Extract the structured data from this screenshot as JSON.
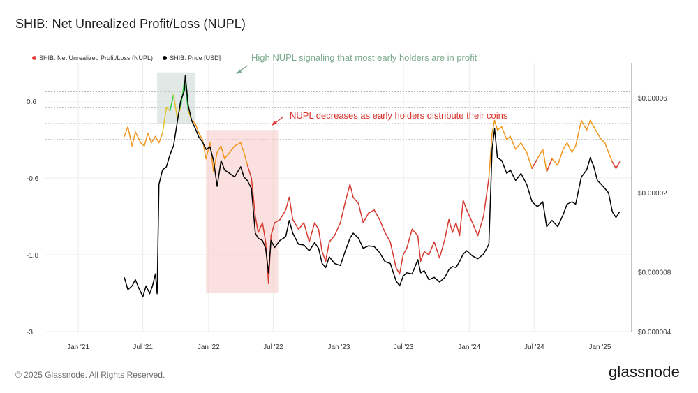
{
  "title": "SHIB: Net Unrealized Profit/Loss (NUPL)",
  "footer": "© 2025 Glassnode. All Rights Reserved.",
  "brand": "glassnode",
  "chart_data": {
    "type": "line",
    "legend_position": "top-left",
    "series": [
      {
        "name": "SHIB: Net Unrealized Profit/Loss (NUPL)",
        "axis": "left",
        "color_legend": "#e8413d",
        "gradient_by_value": {
          "low": "#d43a30",
          "mid": "#f0961e",
          "high": "#2ecc40"
        },
        "points": [
          [
            "2021-05-10",
            0.05
          ],
          [
            "2021-05-20",
            0.2
          ],
          [
            "2021-06-01",
            -0.1
          ],
          [
            "2021-06-10",
            0.12
          ],
          [
            "2021-06-25",
            -0.05
          ],
          [
            "2021-07-05",
            -0.1
          ],
          [
            "2021-07-15",
            0.1
          ],
          [
            "2021-07-25",
            -0.05
          ],
          [
            "2021-08-05",
            0.05
          ],
          [
            "2021-08-15",
            -0.05
          ],
          [
            "2021-08-25",
            0.1
          ],
          [
            "2021-09-05",
            0.5
          ],
          [
            "2021-09-15",
            0.45
          ],
          [
            "2021-09-25",
            0.7
          ],
          [
            "2021-10-05",
            0.35
          ],
          [
            "2021-10-15",
            0.5
          ],
          [
            "2021-10-25",
            0.9
          ],
          [
            "2021-10-28",
            0.85
          ],
          [
            "2021-11-05",
            0.45
          ],
          [
            "2021-11-15",
            0.3
          ],
          [
            "2021-11-25",
            0.25
          ],
          [
            "2021-12-05",
            0.1
          ],
          [
            "2021-12-15",
            0.0
          ],
          [
            "2021-12-25",
            -0.3
          ],
          [
            "2022-01-05",
            -0.05
          ],
          [
            "2022-01-15",
            -0.5
          ],
          [
            "2022-01-25",
            -0.2
          ],
          [
            "2022-02-05",
            -0.1
          ],
          [
            "2022-02-15",
            -0.3
          ],
          [
            "2022-03-01",
            -0.2
          ],
          [
            "2022-03-15",
            -0.1
          ],
          [
            "2022-04-01",
            -0.05
          ],
          [
            "2022-04-10",
            -0.2
          ],
          [
            "2022-04-20",
            -0.4
          ],
          [
            "2022-05-01",
            -0.6
          ],
          [
            "2022-05-12",
            -1.2
          ],
          [
            "2022-05-20",
            -1.45
          ],
          [
            "2022-06-01",
            -1.3
          ],
          [
            "2022-06-10",
            -1.6
          ],
          [
            "2022-06-18",
            -2.25
          ],
          [
            "2022-06-25",
            -1.5
          ],
          [
            "2022-07-05",
            -1.3
          ],
          [
            "2022-07-20",
            -1.25
          ],
          [
            "2022-08-05",
            -1.1
          ],
          [
            "2022-08-15",
            -0.9
          ],
          [
            "2022-08-25",
            -1.25
          ],
          [
            "2022-09-10",
            -1.4
          ],
          [
            "2022-09-25",
            -1.3
          ],
          [
            "2022-10-10",
            -1.6
          ],
          [
            "2022-10-25",
            -1.3
          ],
          [
            "2022-11-05",
            -1.4
          ],
          [
            "2022-11-15",
            -1.75
          ],
          [
            "2022-11-25",
            -1.9
          ],
          [
            "2022-12-05",
            -1.6
          ],
          [
            "2022-12-20",
            -1.5
          ],
          [
            "2023-01-05",
            -1.3
          ],
          [
            "2023-01-20",
            -0.95
          ],
          [
            "2023-02-01",
            -0.7
          ],
          [
            "2023-02-10",
            -0.9
          ],
          [
            "2023-02-25",
            -1.0
          ],
          [
            "2023-03-10",
            -1.3
          ],
          [
            "2023-03-25",
            -1.15
          ],
          [
            "2023-04-10",
            -1.1
          ],
          [
            "2023-04-25",
            -1.25
          ],
          [
            "2023-05-10",
            -1.45
          ],
          [
            "2023-05-25",
            -1.6
          ],
          [
            "2023-06-10",
            -2.0
          ],
          [
            "2023-06-20",
            -2.1
          ],
          [
            "2023-06-30",
            -1.8
          ],
          [
            "2023-07-10",
            -1.7
          ],
          [
            "2023-07-25",
            -1.4
          ],
          [
            "2023-08-10",
            -1.5
          ],
          [
            "2023-08-18",
            -1.9
          ],
          [
            "2023-08-28",
            -1.75
          ],
          [
            "2023-09-10",
            -1.8
          ],
          [
            "2023-09-25",
            -1.6
          ],
          [
            "2023-10-10",
            -1.85
          ],
          [
            "2023-10-25",
            -1.55
          ],
          [
            "2023-11-05",
            -1.25
          ],
          [
            "2023-11-15",
            -1.45
          ],
          [
            "2023-11-25",
            -1.3
          ],
          [
            "2023-12-05",
            -1.5
          ],
          [
            "2023-12-15",
            -0.95
          ],
          [
            "2023-12-25",
            -1.1
          ],
          [
            "2024-01-10",
            -1.3
          ],
          [
            "2024-01-25",
            -1.5
          ],
          [
            "2024-02-10",
            -1.2
          ],
          [
            "2024-02-25",
            -0.6
          ],
          [
            "2024-03-05",
            0.1
          ],
          [
            "2024-03-12",
            0.3
          ],
          [
            "2024-03-20",
            0.15
          ],
          [
            "2024-04-01",
            0.2
          ],
          [
            "2024-04-15",
            0.0
          ],
          [
            "2024-04-25",
            0.05
          ],
          [
            "2024-05-10",
            -0.15
          ],
          [
            "2024-05-25",
            -0.05
          ],
          [
            "2024-06-10",
            -0.2
          ],
          [
            "2024-06-25",
            -0.45
          ],
          [
            "2024-07-10",
            -0.3
          ],
          [
            "2024-07-25",
            -0.15
          ],
          [
            "2024-08-05",
            -0.5
          ],
          [
            "2024-08-20",
            -0.3
          ],
          [
            "2024-09-05",
            -0.4
          ],
          [
            "2024-09-20",
            -0.15
          ],
          [
            "2024-10-01",
            -0.05
          ],
          [
            "2024-10-15",
            -0.2
          ],
          [
            "2024-10-25",
            -0.1
          ],
          [
            "2024-11-10",
            0.3
          ],
          [
            "2024-11-25",
            0.15
          ],
          [
            "2024-12-05",
            0.3
          ],
          [
            "2024-12-15",
            0.2
          ],
          [
            "2024-12-25",
            0.1
          ],
          [
            "2025-01-05",
            0.0
          ],
          [
            "2025-01-15",
            -0.05
          ],
          [
            "2025-01-25",
            -0.2
          ],
          [
            "2025-02-05",
            -0.35
          ],
          [
            "2025-02-15",
            -0.45
          ],
          [
            "2025-02-25",
            -0.35
          ]
        ]
      },
      {
        "name": "SHIB: Price [USD]",
        "axis": "right",
        "color_legend": "#000000",
        "color": "#000000",
        "points": [
          [
            "2021-05-10",
            7.5e-06
          ],
          [
            "2021-05-20",
            6.5e-06
          ],
          [
            "2021-06-01",
            6.8e-06
          ],
          [
            "2021-06-10",
            7.3e-06
          ],
          [
            "2021-06-20",
            6.6e-06
          ],
          [
            "2021-07-01",
            6e-06
          ],
          [
            "2021-07-10",
            6.8e-06
          ],
          [
            "2021-07-20",
            6.2e-06
          ],
          [
            "2021-07-28",
            6.8e-06
          ],
          [
            "2021-08-05",
            7.8e-06
          ],
          [
            "2021-08-10",
            6.2e-06
          ],
          [
            "2021-08-15",
            2.2e-05
          ],
          [
            "2021-08-25",
            2.6e-05
          ],
          [
            "2021-09-05",
            2.7e-05
          ],
          [
            "2021-09-15",
            3.1e-05
          ],
          [
            "2021-09-25",
            3.45e-05
          ],
          [
            "2021-10-05",
            4.5e-05
          ],
          [
            "2021-10-15",
            5.8e-05
          ],
          [
            "2021-10-25",
            6.5e-05
          ],
          [
            "2021-10-28",
            7.8e-05
          ],
          [
            "2021-11-05",
            5.5e-05
          ],
          [
            "2021-11-15",
            4.6e-05
          ],
          [
            "2021-11-25",
            4.2e-05
          ],
          [
            "2021-12-05",
            3.8e-05
          ],
          [
            "2021-12-15",
            3.6e-05
          ],
          [
            "2021-12-25",
            3.3e-05
          ],
          [
            "2022-01-05",
            3.4e-05
          ],
          [
            "2022-01-15",
            2.9e-05
          ],
          [
            "2022-01-25",
            2.15e-05
          ],
          [
            "2022-02-05",
            2.9e-05
          ],
          [
            "2022-02-15",
            2.6e-05
          ],
          [
            "2022-03-01",
            2.5e-05
          ],
          [
            "2022-03-15",
            2.4e-05
          ],
          [
            "2022-04-01",
            2.7e-05
          ],
          [
            "2022-04-10",
            2.4e-05
          ],
          [
            "2022-04-20",
            2.3e-05
          ],
          [
            "2022-05-01",
            2.1e-05
          ],
          [
            "2022-05-12",
            1.25e-05
          ],
          [
            "2022-05-20",
            1.18e-05
          ],
          [
            "2022-06-01",
            1.15e-05
          ],
          [
            "2022-06-10",
            1.05e-05
          ],
          [
            "2022-06-18",
            7.9e-06
          ],
          [
            "2022-06-25",
            1.15e-05
          ],
          [
            "2022-07-05",
            1.06e-05
          ],
          [
            "2022-07-20",
            1.15e-05
          ],
          [
            "2022-08-05",
            1.2e-05
          ],
          [
            "2022-08-15",
            1.45e-05
          ],
          [
            "2022-08-25",
            1.25e-05
          ],
          [
            "2022-09-10",
            1.1e-05
          ],
          [
            "2022-09-25",
            1.09e-05
          ],
          [
            "2022-10-10",
            1.02e-05
          ],
          [
            "2022-10-25",
            1.12e-05
          ],
          [
            "2022-11-05",
            1.05e-05
          ],
          [
            "2022-11-15",
            8.8e-06
          ],
          [
            "2022-11-25",
            8.4e-06
          ],
          [
            "2022-12-05",
            9.5e-06
          ],
          [
            "2022-12-20",
            8.8e-06
          ],
          [
            "2023-01-05",
            8.6e-06
          ],
          [
            "2023-01-20",
            1.03e-05
          ],
          [
            "2023-02-01",
            1.18e-05
          ],
          [
            "2023-02-10",
            1.25e-05
          ],
          [
            "2023-02-25",
            1.18e-05
          ],
          [
            "2023-03-10",
            1.05e-05
          ],
          [
            "2023-03-25",
            1.08e-05
          ],
          [
            "2023-04-10",
            1.07e-05
          ],
          [
            "2023-04-25",
            1e-05
          ],
          [
            "2023-05-10",
            9e-06
          ],
          [
            "2023-05-25",
            8.8e-06
          ],
          [
            "2023-06-10",
            7.2e-06
          ],
          [
            "2023-06-20",
            6.8e-06
          ],
          [
            "2023-06-30",
            7.6e-06
          ],
          [
            "2023-07-10",
            7.9e-06
          ],
          [
            "2023-07-25",
            7.8e-06
          ],
          [
            "2023-08-10",
            9.2e-06
          ],
          [
            "2023-08-18",
            7.9e-06
          ],
          [
            "2023-08-28",
            8.1e-06
          ],
          [
            "2023-09-10",
            7.3e-06
          ],
          [
            "2023-09-25",
            7.5e-06
          ],
          [
            "2023-10-10",
            7.1e-06
          ],
          [
            "2023-10-25",
            7.5e-06
          ],
          [
            "2023-11-05",
            8.2e-06
          ],
          [
            "2023-11-15",
            8.5e-06
          ],
          [
            "2023-11-25",
            8.4e-06
          ],
          [
            "2023-12-05",
            9e-06
          ],
          [
            "2023-12-15",
            9.8e-06
          ],
          [
            "2023-12-25",
            1.02e-05
          ],
          [
            "2024-01-10",
            9.6e-06
          ],
          [
            "2024-01-25",
            9.3e-06
          ],
          [
            "2024-02-10",
            9.8e-06
          ],
          [
            "2024-02-25",
            1.1e-05
          ],
          [
            "2024-03-05",
            3.3e-05
          ],
          [
            "2024-03-12",
            4.2e-05
          ],
          [
            "2024-03-20",
            3e-05
          ],
          [
            "2024-04-01",
            2.9e-05
          ],
          [
            "2024-04-15",
            2.5e-05
          ],
          [
            "2024-04-25",
            2.6e-05
          ],
          [
            "2024-05-10",
            2.3e-05
          ],
          [
            "2024-05-25",
            2.5e-05
          ],
          [
            "2024-06-10",
            2.2e-05
          ],
          [
            "2024-06-25",
            1.8e-05
          ],
          [
            "2024-07-10",
            1.7e-05
          ],
          [
            "2024-07-25",
            1.8e-05
          ],
          [
            "2024-08-05",
            1.35e-05
          ],
          [
            "2024-08-20",
            1.45e-05
          ],
          [
            "2024-09-05",
            1.35e-05
          ],
          [
            "2024-09-20",
            1.55e-05
          ],
          [
            "2024-10-01",
            1.75e-05
          ],
          [
            "2024-10-15",
            1.8e-05
          ],
          [
            "2024-10-25",
            1.75e-05
          ],
          [
            "2024-11-10",
            2.4e-05
          ],
          [
            "2024-11-25",
            2.6e-05
          ],
          [
            "2024-12-05",
            3e-05
          ],
          [
            "2024-12-15",
            2.7e-05
          ],
          [
            "2024-12-25",
            2.3e-05
          ],
          [
            "2025-01-05",
            2.2e-05
          ],
          [
            "2025-01-15",
            2.1e-05
          ],
          [
            "2025-01-25",
            2e-05
          ],
          [
            "2025-02-05",
            1.6e-05
          ],
          [
            "2025-02-15",
            1.5e-05
          ],
          [
            "2025-02-25",
            1.6e-05
          ]
        ]
      }
    ],
    "x_axis": {
      "type": "date",
      "range": [
        "2020-10-01",
        "2025-03-31"
      ],
      "tick_labels": [
        "Jan '21",
        "Jul '21",
        "Jan '22",
        "Jul '22",
        "Jan '23",
        "Jul '23",
        "Jan '24",
        "Jul '24",
        "Jan '25"
      ],
      "tick_dates": [
        "2021-01-01",
        "2021-07-01",
        "2022-01-01",
        "2022-07-01",
        "2023-01-01",
        "2023-07-01",
        "2024-01-01",
        "2024-07-01",
        "2025-01-01"
      ]
    },
    "y_left": {
      "range": [
        -3,
        1.2
      ],
      "tick_labels": [
        "0.6",
        "-0.6",
        "-1.8",
        "-3"
      ],
      "tick_values": [
        0.6,
        -0.6,
        -1.8,
        -3
      ]
    },
    "y_right": {
      "scale": "log",
      "range": [
        4e-06,
        9e-05
      ],
      "tick_labels": [
        "$0.00006",
        "$0.00002",
        "$0.000008",
        "$0.000004"
      ],
      "tick_values": [
        6e-05,
        2e-05,
        8e-06,
        4e-06
      ]
    },
    "reference_lines_left": [
      0.75,
      0.5,
      0.25,
      0.0
    ],
    "highlight_regions": [
      {
        "start": "2021-08-10",
        "end": "2021-11-25",
        "y_top": 1.05,
        "y_bottom": 0.25,
        "color": "#c8d6cf"
      },
      {
        "start": "2021-12-25",
        "end": "2022-07-15",
        "y_top": 0.15,
        "y_bottom": -2.4,
        "color": "#f7c6c6"
      }
    ],
    "annotations": [
      {
        "text": "High NUPL signaling that most early holders are in profit",
        "color": "#7aa98b"
      },
      {
        "text": "NUPL decreases as early holders distribute their coins",
        "color": "#d9332b"
      }
    ]
  }
}
